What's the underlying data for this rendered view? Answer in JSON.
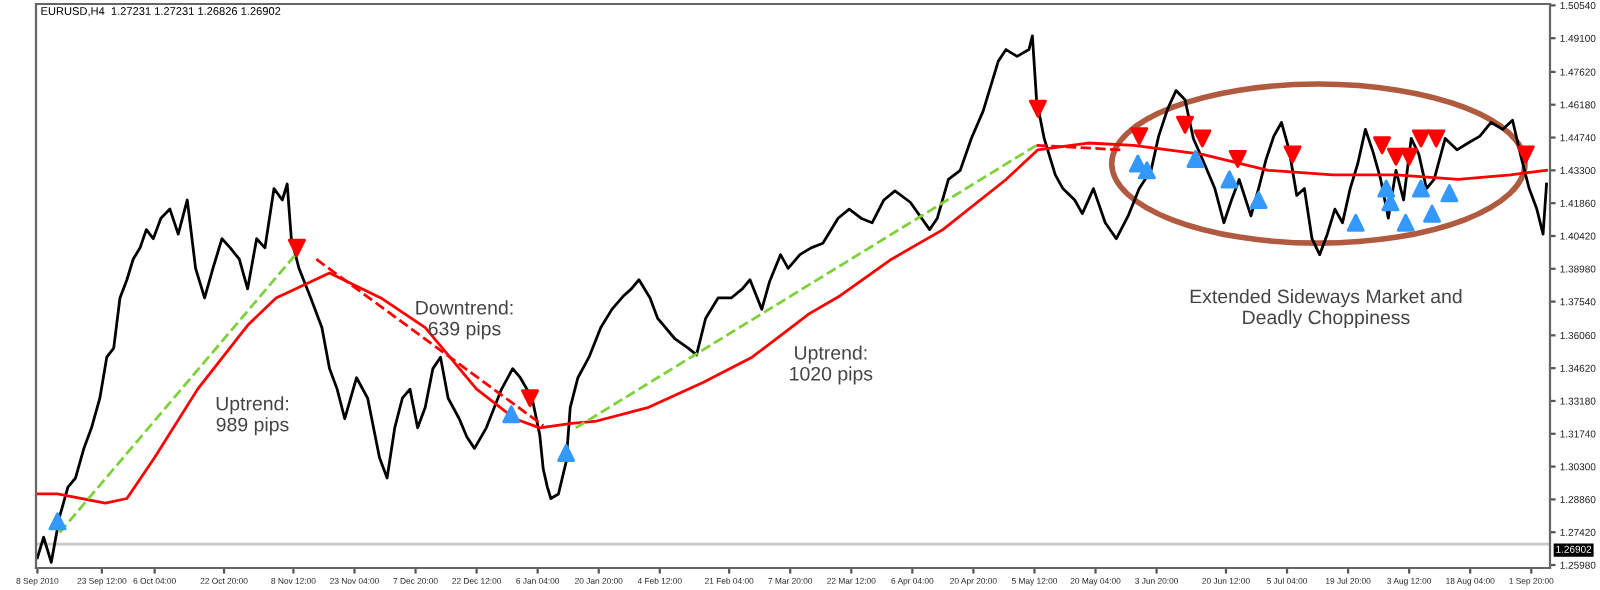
{
  "chart_data": {
    "type": "line",
    "title": "EURUSD,H4  1.27231 1.27231 1.26826 1.26902",
    "xlim": [
      "2010-09-07T16:00",
      "2011-09-06T08:00"
    ],
    "ylim": [
      1.2585,
      1.506
    ],
    "xticks": [
      {
        "value": "2010-09-08T00:00",
        "label": "8 Sep 2010"
      },
      {
        "value": "2010-09-23T12:00",
        "label": "23 Sep 12:00"
      },
      {
        "value": "2010-10-06T04:00",
        "label": "6 Oct 04:00"
      },
      {
        "value": "2010-10-22T20:00",
        "label": "22 Oct 20:00"
      },
      {
        "value": "2010-11-08T12:00",
        "label": "8 Nov 12:00"
      },
      {
        "value": "2010-11-23T04:00",
        "label": "23 Nov 04:00"
      },
      {
        "value": "2010-12-07T20:00",
        "label": "7 Dec 20:00"
      },
      {
        "value": "2010-12-22T12:00",
        "label": "22 Dec 12:00"
      },
      {
        "value": "2011-01-06T04:00",
        "label": "6 Jan 04:00"
      },
      {
        "value": "2011-01-20T20:00",
        "label": "20 Jan 20:00"
      },
      {
        "value": "2011-02-04T12:00",
        "label": "4 Feb 12:00"
      },
      {
        "value": "2011-02-21T04:00",
        "label": "21 Feb 04:00"
      },
      {
        "value": "2011-03-07T20:00",
        "label": "7 Mar 20:00"
      },
      {
        "value": "2011-03-22T12:00",
        "label": "22 Mar 12:00"
      },
      {
        "value": "2011-04-06T04:00",
        "label": "6 Apr 04:00"
      },
      {
        "value": "2011-04-20T20:00",
        "label": "20 Apr 20:00"
      },
      {
        "value": "2011-05-05T12:00",
        "label": "5 May 12:00"
      },
      {
        "value": "2011-05-20T04:00",
        "label": "20 May 04:00"
      },
      {
        "value": "2011-06-03T20:00",
        "label": "3 Jun 20:00"
      },
      {
        "value": "2011-06-20T12:00",
        "label": "20 Jun 12:00"
      },
      {
        "value": "2011-07-05T04:00",
        "label": "5 Jul 04:00"
      },
      {
        "value": "2011-07-19T20:00",
        "label": "19 Jul 20:00"
      },
      {
        "value": "2011-08-03T12:00",
        "label": "3 Aug 12:00"
      },
      {
        "value": "2011-08-18T04:00",
        "label": "18 Aug 04:00"
      },
      {
        "value": "2011-09-01T20:00",
        "label": "1 Sep 20:00"
      }
    ],
    "yticks": [
      {
        "value": 1.2598,
        "label": "1.25980"
      },
      {
        "value": 1.2742,
        "label": "1.27420"
      },
      {
        "value": 1.2886,
        "label": "1.28860"
      },
      {
        "value": 1.303,
        "label": "1.30300"
      },
      {
        "value": 1.3174,
        "label": "1.31740"
      },
      {
        "value": 1.3318,
        "label": "1.33180"
      },
      {
        "value": 1.3462,
        "label": "1.34620"
      },
      {
        "value": 1.3606,
        "label": "1.36060"
      },
      {
        "value": 1.3754,
        "label": "1.37540"
      },
      {
        "value": 1.3898,
        "label": "1.38980"
      },
      {
        "value": 1.4042,
        "label": "1.40420"
      },
      {
        "value": 1.4186,
        "label": "1.41860"
      },
      {
        "value": 1.433,
        "label": "1.43300"
      },
      {
        "value": 1.4474,
        "label": "1.44740"
      },
      {
        "value": 1.4618,
        "label": "1.46180"
      },
      {
        "value": 1.4762,
        "label": "1.47620"
      },
      {
        "value": 1.491,
        "label": "1.49100"
      },
      {
        "value": 1.5054,
        "label": "1.50540"
      }
    ],
    "grid": false,
    "legend": false,
    "ref_lines": [
      {
        "axis": "y",
        "value": 1.26902,
        "label": "1.26902",
        "color": "#c8c8c8"
      }
    ],
    "series": [
      {
        "color": "#000000",
        "x": [
          "2010-09-08T00:00",
          "2010-09-09T12:00",
          "2010-09-11T08:00",
          "2010-09-13T08:00",
          "2010-09-15T08:00",
          "2010-09-17T04:00",
          "2010-09-19T04:00",
          "2010-09-21T00:00",
          "2010-09-23T00:00",
          "2010-09-24T16:00",
          "2010-09-26T08:00",
          "2010-09-27T20:00",
          "2010-09-29T12:00",
          "2010-10-01T00:00",
          "2010-10-02T16:00",
          "2010-10-04T04:00",
          "2010-10-05T20:00",
          "2010-10-07T16:00",
          "2010-10-09T20:00",
          "2010-10-11T20:00",
          "2010-10-14T00:00",
          "2010-10-16T00:00",
          "2010-10-18T04:00",
          "2010-10-20T04:00",
          "2010-10-22T08:00",
          "2010-10-24T08:00",
          "2010-10-26T12:00",
          "2010-10-28T12:00",
          "2010-10-30T16:00",
          "2010-11-01T16:00",
          "2010-11-03T20:00",
          "2010-11-05T20:00",
          "2010-11-07T00:00",
          "2010-11-08T00:00",
          "2010-11-09T20:00",
          "2010-11-12T16:00",
          "2010-11-15T08:00",
          "2010-11-17T04:00",
          "2010-11-19T00:00",
          "2010-11-20T20:00",
          "2010-11-23T16:00",
          "2010-11-26T08:00",
          "2010-11-29T04:00",
          "2010-12-01T00:00",
          "2010-12-02T20:00",
          "2010-12-04T16:00",
          "2010-12-06T12:00",
          "2010-12-08T08:00",
          "2010-12-10T04:00",
          "2010-12-12T00:00",
          "2010-12-13T20:00",
          "2010-12-15T16:00",
          "2010-12-18T08:00",
          "2010-12-20T04:00",
          "2010-12-22T00:00",
          "2010-12-24T20:00",
          "2010-12-28T12:00",
          "2010-12-31T04:00",
          "2011-01-02T00:00",
          "2011-01-04T20:00",
          "2011-01-06T16:00",
          "2011-01-07T12:00",
          "2011-01-08T12:00",
          "2011-01-09T08:00",
          "2011-01-11T04:00",
          "2011-01-13T00:00",
          "2011-01-14T00:00",
          "2011-01-15T20:00",
          "2011-01-18T12:00",
          "2011-01-21T08:00",
          "2011-01-24T00:00",
          "2011-01-26T20:00",
          "2011-01-28T16:00",
          "2011-01-30T12:00",
          "2011-02-02T04:00",
          "2011-02-04T00:00",
          "2011-02-08T04:00",
          "2011-02-11T08:00",
          "2011-02-13T08:00",
          "2011-02-15T12:00",
          "2011-02-18T12:00",
          "2011-02-21T16:00",
          "2011-02-24T08:00",
          "2011-02-26T04:00",
          "2011-03-01T00:00",
          "2011-03-02T20:00",
          "2011-03-05T12:00",
          "2011-03-07T08:00",
          "2011-03-10T04:00",
          "2011-03-12T20:00",
          "2011-03-15T16:00",
          "2011-03-19T08:00",
          "2011-03-22T00:00",
          "2011-03-24T20:00",
          "2011-03-27T12:00",
          "2011-03-30T08:00",
          "2011-04-02T00:00",
          "2011-04-05T16:00",
          "2011-04-10T08:00",
          "2011-04-12T04:00",
          "2011-04-14T20:00",
          "2011-04-17T16:00",
          "2011-04-20T08:00",
          "2011-04-23T04:00",
          "2011-04-26T20:00",
          "2011-04-28T16:00",
          "2011-05-01T08:00",
          "2011-05-04T04:00",
          "2011-05-05T00:00",
          "2011-05-06T00:00",
          "2011-05-07T20:00",
          "2011-05-10T12:00",
          "2011-05-12T08:00",
          "2011-05-15T04:00",
          "2011-05-17T00:00",
          "2011-05-19T16:00",
          "2011-05-22T12:00",
          "2011-05-25T04:00",
          "2011-05-28T00:00",
          "2011-05-30T16:00",
          "2011-06-02T12:00",
          "2011-06-04T08:00",
          "2011-06-06T12:00",
          "2011-06-08T12:00",
          "2011-06-10T16:00",
          "2011-06-12T16:00",
          "2011-06-14T20:00",
          "2011-06-17T20:00",
          "2011-06-20T00:00",
          "2011-06-21T20:00",
          "2011-06-23T16:00",
          "2011-06-26T12:00",
          "2011-06-28T08:00",
          "2011-06-30T04:00",
          "2011-07-02T00:00",
          "2011-07-03T20:00",
          "2011-07-05T16:00",
          "2011-07-07T12:00",
          "2011-07-09T08:00",
          "2011-07-11T04:00",
          "2011-07-13T00:00",
          "2011-07-14T20:00",
          "2011-07-16T16:00",
          "2011-07-18T12:00",
          "2011-07-20T08:00",
          "2011-07-22T04:00",
          "2011-07-24T00:00",
          "2011-07-25T20:00",
          "2011-07-27T16:00",
          "2011-07-29T12:00",
          "2011-07-31T08:00",
          "2011-08-02T04:00",
          "2011-08-04T00:00",
          "2011-08-05T20:00",
          "2011-08-07T16:00",
          "2011-08-09T12:00",
          "2011-08-12T04:00",
          "2011-08-15T00:00",
          "2011-08-17T16:00",
          "2011-08-20T12:00",
          "2011-08-23T04:00",
          "2011-08-26T00:00",
          "2011-08-28T08:00",
          "2011-08-30T12:00",
          "2011-09-01T08:00",
          "2011-09-03T04:00",
          "2011-09-04T16:00",
          "2011-09-05T12:00"
        ],
        "values": [
          1.263,
          1.272,
          1.261,
          1.281,
          1.294,
          1.298,
          1.311,
          1.32,
          1.333,
          1.351,
          1.355,
          1.377,
          1.385,
          1.394,
          1.399,
          1.407,
          1.403,
          1.412,
          1.416,
          1.405,
          1.42,
          1.39,
          1.377,
          1.39,
          1.403,
          1.399,
          1.394,
          1.381,
          1.403,
          1.399,
          1.425,
          1.42,
          1.427,
          1.403,
          1.39,
          1.377,
          1.364,
          1.346,
          1.337,
          1.324,
          1.342,
          1.333,
          1.307,
          1.298,
          1.32,
          1.333,
          1.337,
          1.32,
          1.329,
          1.346,
          1.351,
          1.333,
          1.324,
          1.316,
          1.311,
          1.32,
          1.337,
          1.346,
          1.342,
          1.333,
          1.317,
          1.302,
          1.294,
          1.289,
          1.291,
          1.305,
          1.329,
          1.342,
          1.351,
          1.364,
          1.372,
          1.378,
          1.381,
          1.385,
          1.377,
          1.368,
          1.359,
          1.355,
          1.352,
          1.368,
          1.377,
          1.377,
          1.381,
          1.385,
          1.372,
          1.384,
          1.396,
          1.39,
          1.396,
          1.399,
          1.401,
          1.412,
          1.416,
          1.412,
          1.41,
          1.42,
          1.424,
          1.419,
          1.407,
          1.412,
          1.429,
          1.433,
          1.447,
          1.459,
          1.481,
          1.486,
          1.483,
          1.486,
          1.492,
          1.464,
          1.447,
          1.431,
          1.425,
          1.42,
          1.414,
          1.425,
          1.41,
          1.403,
          1.413,
          1.425,
          1.433,
          1.448,
          1.46,
          1.468,
          1.464,
          1.447,
          1.438,
          1.425,
          1.41,
          1.42,
          1.429,
          1.413,
          1.425,
          1.438,
          1.448,
          1.454,
          1.442,
          1.422,
          1.425,
          1.403,
          1.396,
          1.405,
          1.416,
          1.41,
          1.425,
          1.436,
          1.451,
          1.441,
          1.429,
          1.412,
          1.433,
          1.42,
          1.447,
          1.44,
          1.425,
          1.429,
          1.447,
          1.442,
          1.445,
          1.448,
          1.454,
          1.451,
          1.455,
          1.438,
          1.425,
          1.416,
          1.405,
          1.427
        ]
      },
      {
        "type": "line",
        "color": "#ff0000",
        "x": [
          "2010-09-08T00:00",
          "2010-09-12T20:00",
          "2010-09-24T08:00",
          "2010-09-29T12:00",
          "2010-10-06T04:00",
          "2010-10-16T12:00",
          "2010-10-28T12:00",
          "2010-11-04T08:00",
          "2010-11-17T04:00",
          "2010-11-29T12:00",
          "2010-12-10T04:00",
          "2010-12-22T12:00",
          "2010-12-31T16:00",
          "2011-01-06T16:00",
          "2011-01-14T08:00",
          "2011-01-20T08:00",
          "2011-02-01T20:00",
          "2011-02-15T00:00",
          "2011-02-26T16:00",
          "2011-03-12T08:00",
          "2011-03-19T20:00",
          "2011-04-01T04:00",
          "2011-04-13T12:00",
          "2011-04-28T16:00",
          "2011-05-06T08:00",
          "2011-05-18T08:00",
          "2011-05-29T08:00",
          "2011-06-14T20:00",
          "2011-06-30T16:00",
          "2011-07-16T04:00",
          "2011-07-31T08:00",
          "2011-08-15T08:00",
          "2011-08-27T20:00",
          "2011-09-05T12:00"
        ],
        "values": [
          1.291,
          1.291,
          1.287,
          1.289,
          1.307,
          1.337,
          1.365,
          1.377,
          1.388,
          1.377,
          1.364,
          1.337,
          1.324,
          1.32,
          1.322,
          1.323,
          1.329,
          1.34,
          1.351,
          1.37,
          1.378,
          1.394,
          1.407,
          1.429,
          1.442,
          1.445,
          1.444,
          1.44,
          1.433,
          1.431,
          1.431,
          1.429,
          1.431,
          1.433
        ]
      },
      {
        "type": "line",
        "color": "#7fd13b",
        "line_style": "dashed",
        "x": [
          "2010-09-13T08:00",
          "2010-11-09T00:00"
        ],
        "values": [
          1.274,
          1.396
        ]
      },
      {
        "type": "line",
        "color": "#7fd13b",
        "line_style": "dashed",
        "x": [
          "2011-01-15T08:00",
          "2011-05-06T00:00"
        ],
        "values": [
          1.32,
          1.444
        ]
      },
      {
        "type": "line",
        "color": "#ff0000",
        "line_style": "dashed",
        "x": [
          "2010-11-14T00:00",
          "2011-01-07T12:00"
        ],
        "values": [
          1.394,
          1.321
        ]
      },
      {
        "type": "line",
        "color": "#ff0000",
        "line_style": "dashed",
        "x": [
          "2011-05-06T00:00",
          "2011-05-26T04:00"
        ],
        "values": [
          1.444,
          1.442
        ]
      },
      {
        "type": "scatter",
        "color": "#3399ff",
        "marker": "triangle",
        "x": [
          "2010-09-12T20:00",
          "2010-12-30T20:00",
          "2011-01-13T00:00",
          "2011-05-30T08:00",
          "2011-06-01T12:00",
          "2011-06-13T04:00",
          "2011-06-21T08:00",
          "2011-06-28T08:00",
          "2011-07-21T16:00",
          "2011-07-29T00:00",
          "2011-07-30T00:00",
          "2011-08-02T16:00",
          "2011-08-06T08:00",
          "2011-08-09T00:00",
          "2011-08-13T04:00"
        ],
        "values": [
          1.279,
          1.326,
          1.309,
          1.436,
          1.433,
          1.438,
          1.429,
          1.42,
          1.41,
          1.425,
          1.419,
          1.41,
          1.425,
          1.414,
          1.423
        ]
      },
      {
        "type": "scatter",
        "color": "#ff0000",
        "marker": "triangle_down",
        "x": [
          "2010-11-09T08:00",
          "2011-01-04T08:00",
          "2011-05-06T08:00",
          "2011-05-30T16:00",
          "2011-06-10T16:00",
          "2011-06-14T20:00",
          "2011-06-23T08:00",
          "2011-07-06T12:00",
          "2011-07-28T00:00",
          "2011-07-31T08:00",
          "2011-08-03T12:00",
          "2011-08-06T08:00",
          "2011-08-10T00:00",
          "2011-08-31T12:00"
        ],
        "values": [
          1.399,
          1.333,
          1.46,
          1.448,
          1.453,
          1.447,
          1.438,
          1.44,
          1.444,
          1.439,
          1.439,
          1.447,
          1.447,
          1.44
        ]
      }
    ],
    "annotations": [
      "Uptrend:\n989 pips",
      "Downtrend:\n639 pips",
      "Uptrend:\n1020 pips",
      "Extended Sideways Market and\nDeadly Choppiness"
    ]
  }
}
